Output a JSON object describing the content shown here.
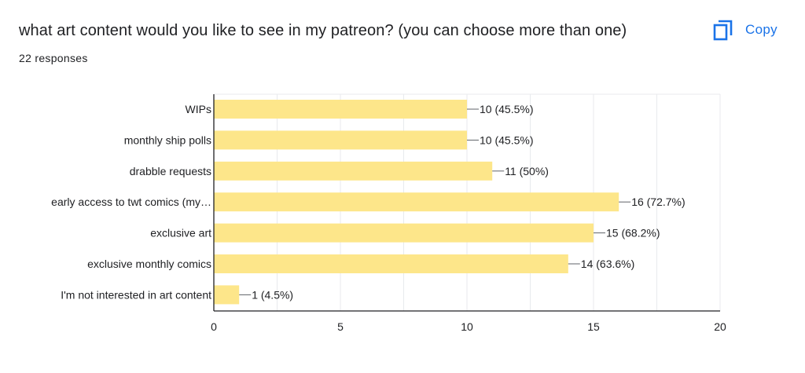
{
  "question": {
    "title": "what art content would you like to see in my patreon? (you can choose more than one)",
    "responses": "22 responses"
  },
  "toolbar": {
    "copy_label": "Copy"
  },
  "colors": {
    "bar": "#fde68a",
    "accent": "#1a73e8",
    "grid": "#e8eaed",
    "axis": "#202124",
    "text": "#202124"
  },
  "icons": {
    "copy": "copy-icon"
  },
  "chart_data": {
    "type": "bar",
    "orientation": "horizontal",
    "categories": [
      "WIPs",
      "monthly ship polls",
      "drabble requests",
      "early access to twt comics (my…",
      "exclusive art",
      "exclusive monthly comics",
      "I'm not interested in art content"
    ],
    "values": [
      10,
      10,
      11,
      16,
      15,
      14,
      1
    ],
    "data_labels": [
      "10 (45.5%)",
      "10 (45.5%)",
      "11 (50%)",
      "16 (72.7%)",
      "15 (68.2%)",
      "14 (63.6%)",
      "1 (4.5%)"
    ],
    "xlim": [
      0,
      20
    ],
    "xticks": [
      0,
      5,
      10,
      15,
      20
    ],
    "xlabel": "",
    "ylabel": "",
    "grid": true,
    "legend": "none"
  }
}
